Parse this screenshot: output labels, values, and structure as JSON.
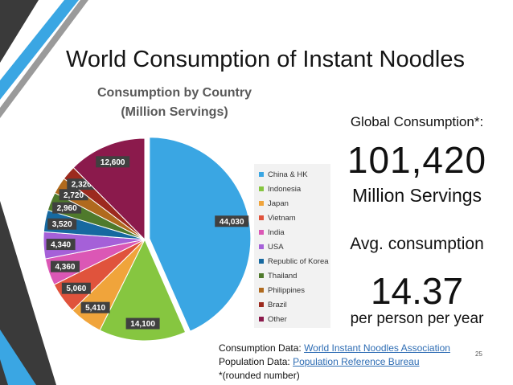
{
  "slide": {
    "title": "World Consumption of Instant Noodles",
    "page_number": "25"
  },
  "stats": {
    "global_label": "Global Consumption*:",
    "global_value": "101,420",
    "global_unit": "Million Servings",
    "avg_label": "Avg. consumption",
    "avg_value": "14.37",
    "avg_unit": "per person per year"
  },
  "sources": {
    "consumption_prefix": "Consumption Data: ",
    "consumption_link": "World Instant Noodles Association",
    "population_prefix": "Population Data: ",
    "population_link": "Population Reference Bureau",
    "note": "*(rounded number)"
  },
  "chart_data": {
    "type": "pie",
    "title": "Consumption by Country",
    "subtitle": "(Million Servings)",
    "categories": [
      "China & HK",
      "Indonesia",
      "Japan",
      "Vietnam",
      "India",
      "USA",
      "Republic of Korea",
      "Thailand",
      "Philippines",
      "Brazil",
      "Other"
    ],
    "values": [
      44030,
      14100,
      5410,
      5060,
      4360,
      4340,
      3520,
      2960,
      2720,
      2320,
      12600
    ],
    "labels": [
      "44,030",
      "14,100",
      "5,410",
      "5,060",
      "4,360",
      "4,340",
      "3,520",
      "2,960",
      "2,720",
      "2,320",
      "12,600"
    ],
    "colors": [
      "#3aa6e3",
      "#86c640",
      "#f0a43b",
      "#e0533c",
      "#db57b5",
      "#a560d8",
      "#1769a0",
      "#4f7a2c",
      "#b06a1e",
      "#9c2a1e",
      "#8b1a4c"
    ],
    "legend_position": "right",
    "exploded": [
      "China & HK"
    ]
  }
}
